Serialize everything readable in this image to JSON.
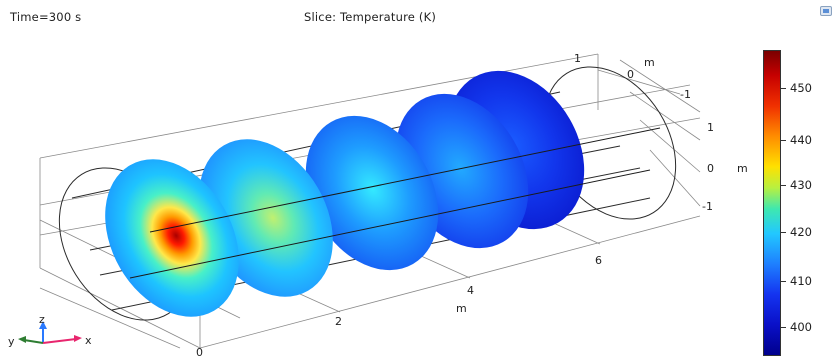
{
  "header": {
    "time_label": "Time=300 s",
    "slice_title": "Slice: Temperature (K)"
  },
  "axes": {
    "x_ticks": [
      "0",
      "2",
      "4",
      "6"
    ],
    "x_unit": "m",
    "y_ticks": [
      "1",
      "0",
      "-1"
    ],
    "y_unit": "m",
    "z_ticks": [
      "1",
      "0",
      "-1"
    ],
    "z_unit": "m"
  },
  "triad": {
    "x": "x",
    "y": "y",
    "z": "z"
  },
  "colorbar": {
    "ticks": [
      "450",
      "440",
      "430",
      "420",
      "410",
      "400"
    ],
    "gradient": [
      "#7a0000",
      "#f03000",
      "#ffe000",
      "#3ee8b0",
      "#1e80ff",
      "#00008c"
    ]
  },
  "slices": [
    {
      "position_m": 0,
      "peak_color": "#ff1a00",
      "edge_color": "#1c8cff"
    },
    {
      "position_m": 1.5,
      "peak_color": "#9ef06a",
      "edge_color": "#1f82ff"
    },
    {
      "position_m": 3,
      "peak_color": "#30e8ff",
      "edge_color": "#1450f2"
    },
    {
      "position_m": 4.5,
      "peak_color": "#22aaff",
      "edge_color": "#1232e8"
    },
    {
      "position_m": 6,
      "peak_color": "#1a5cff",
      "edge_color": "#0a18cc"
    }
  ],
  "colors": {
    "frame": "#333333",
    "axis_x": "#e8266e",
    "axis_y": "#2e7d32",
    "axis_z": "#2979ff"
  },
  "icons": [
    "corner-tool-icon"
  ]
}
